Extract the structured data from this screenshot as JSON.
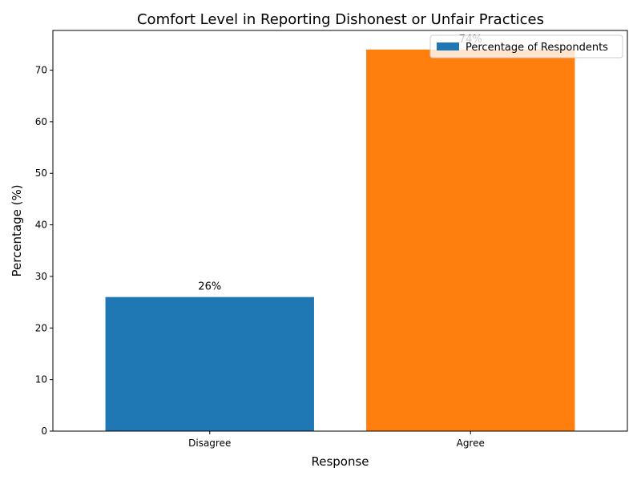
{
  "chart_data": {
    "type": "bar",
    "title": "Comfort Level in Reporting Dishonest or Unfair Practices",
    "xlabel": "Response",
    "ylabel": "Percentage (%)",
    "categories": [
      "Disagree",
      "Agree"
    ],
    "values": [
      26,
      74
    ],
    "value_labels": [
      "26%",
      "74%"
    ],
    "bar_colors": [
      "#1f77b4",
      "#ff7f0e"
    ],
    "ylim": [
      0,
      77.7
    ],
    "yticks": [
      0,
      10,
      20,
      30,
      40,
      50,
      60,
      70
    ],
    "grid": false,
    "legend": {
      "position": "top-right",
      "entries": [
        {
          "label": "Percentage of Respondents",
          "color": "#1f77b4"
        }
      ]
    }
  }
}
